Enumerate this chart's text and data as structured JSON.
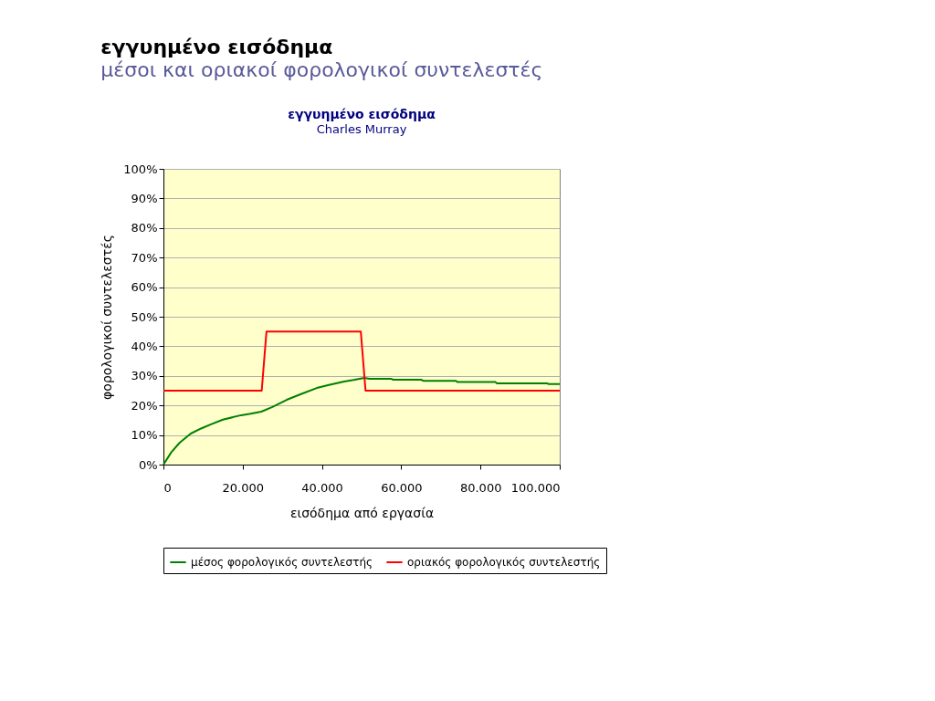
{
  "chart_data": {
    "type": "line",
    "title": "εγγυημένο εισόδημα",
    "subtitle": "Charles Murray",
    "annotations": [
      "εγγυημένο εισόδημα",
      "μέσοι και οριακοί φορολογικοί συντελεστές"
    ],
    "xlabel": "εισόδημα από εργασία",
    "ylabel": "φορολογικοί συντελεστές",
    "xlim": [
      0,
      100000
    ],
    "xticks": [
      {
        "value": 0,
        "label": "0"
      },
      {
        "value": 20000,
        "label": "20.000"
      },
      {
        "value": 40000,
        "label": "40.000"
      },
      {
        "value": 60000,
        "label": "60.000"
      },
      {
        "value": 80000,
        "label": "80.000"
      },
      {
        "value": 100000,
        "label": "100.000"
      }
    ],
    "ylim": [
      0,
      100
    ],
    "yticks": [
      {
        "value": 0,
        "label": "0%"
      },
      {
        "value": 10,
        "label": "10%"
      },
      {
        "value": 20,
        "label": "20%"
      },
      {
        "value": 30,
        "label": "30%"
      },
      {
        "value": 40,
        "label": "40%"
      },
      {
        "value": 50,
        "label": "50%"
      },
      {
        "value": 60,
        "label": "60%"
      },
      {
        "value": 70,
        "label": "70%"
      },
      {
        "value": 80,
        "label": "80%"
      },
      {
        "value": 90,
        "label": "90%"
      },
      {
        "value": 100,
        "label": "100%"
      }
    ],
    "grid": "y",
    "legend": "bottom",
    "marker": "none",
    "line_style": "solid",
    "series": [
      {
        "name": "μέσος φορολογικός συντελεστής",
        "color": "#008000",
        "x": [
          0,
          2000,
          4100,
          6900,
          9500,
          12000,
          15000,
          19600,
          22000,
          24700,
          27500,
          31100,
          35000,
          38700,
          42000,
          45600,
          48000,
          50700,
          52000,
          57500,
          58000,
          65000,
          65700,
          73800,
          74200,
          83800,
          84100,
          96800,
          97200,
          100000
        ],
        "values": [
          0,
          4.2,
          7.4,
          10.5,
          12.2,
          13.6,
          15.2,
          16.7,
          17.2,
          17.9,
          19.5,
          21.9,
          24.0,
          25.9,
          27.0,
          28.1,
          28.6,
          29.3,
          29.0,
          29.0,
          28.7,
          28.7,
          28.3,
          28.3,
          27.9,
          27.9,
          27.5,
          27.5,
          27.2,
          27.2
        ]
      },
      {
        "name": "οριακός φορολογικός συντελεστής",
        "color": "#ff0000",
        "x": [
          0,
          24800,
          26000,
          49800,
          51000,
          100000
        ],
        "values": [
          25,
          25,
          45,
          45,
          25,
          25
        ]
      }
    ]
  }
}
